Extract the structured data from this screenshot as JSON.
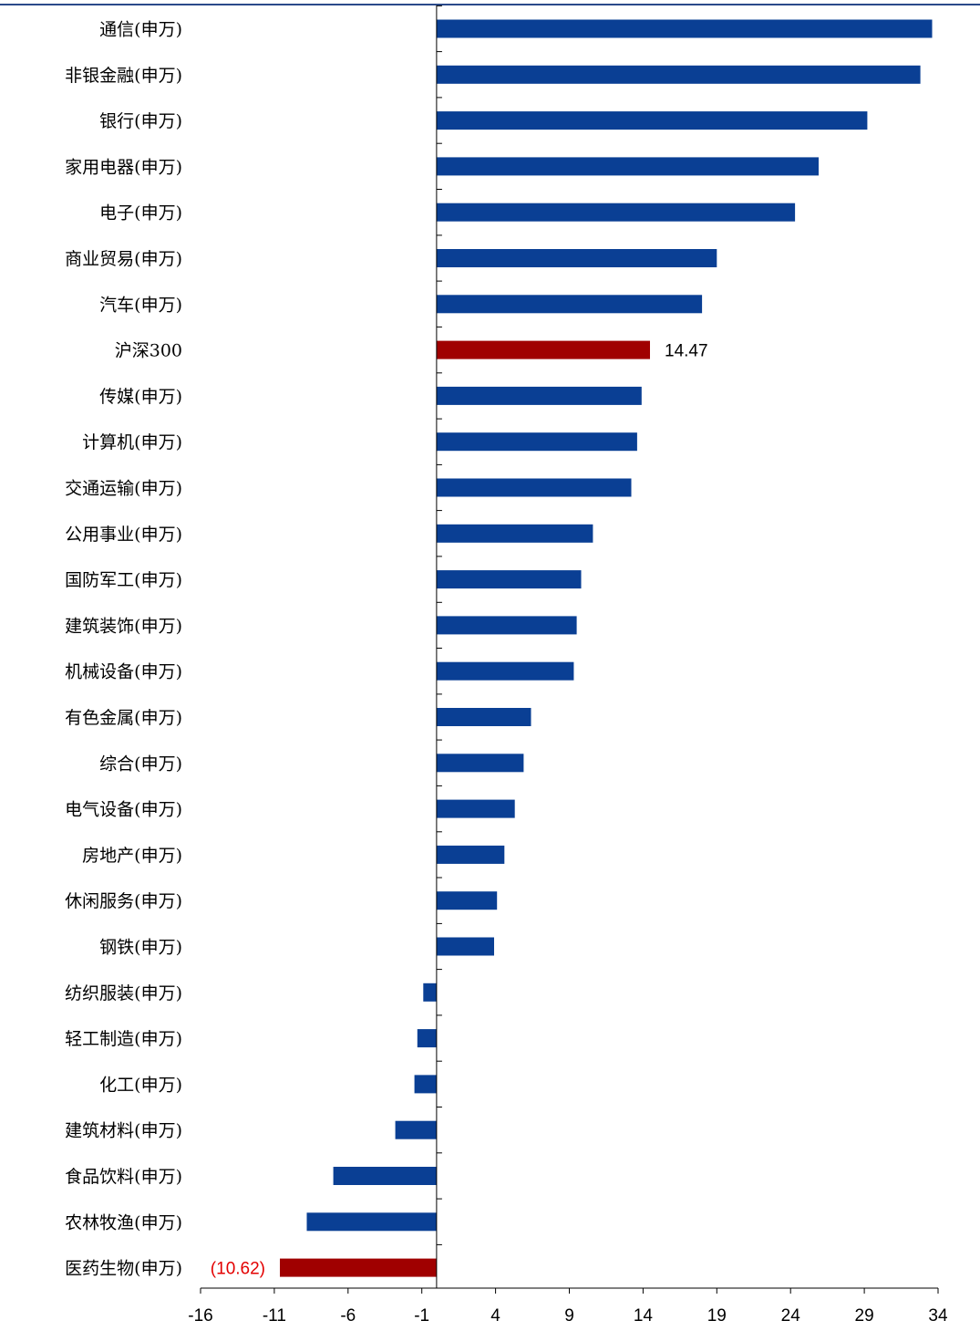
{
  "chart_data": {
    "type": "bar",
    "orientation": "horizontal",
    "title": "",
    "xlabel": "",
    "ylabel": "",
    "xlim": [
      -16,
      34
    ],
    "ticks": [
      -16,
      -11,
      -6,
      -1,
      4,
      9,
      14,
      19,
      24,
      29,
      34
    ],
    "grid": false,
    "legend": "none",
    "colors": {
      "default_bar": "#0a3f94",
      "highlight_bar": "#a00000",
      "highlight_label": "#e30000",
      "top_rule": "#2b4a8a"
    },
    "categories": [
      "通信(申万)",
      "非银金融(申万)",
      "银行(申万)",
      "家用电器(申万)",
      "电子(申万)",
      "商业贸易(申万)",
      "汽车(申万)",
      "沪深300",
      "传媒(申万)",
      "计算机(申万)",
      "交通运输(申万)",
      "公用事业(申万)",
      "国防军工(申万)",
      "建筑装饰(申万)",
      "机械设备(申万)",
      "有色金属(申万)",
      "综合(申万)",
      "电气设备(申万)",
      "房地产(申万)",
      "休闲服务(申万)",
      "钢铁(申万)",
      "纺织服装(申万)",
      "轻工制造(申万)",
      "化工(申万)",
      "建筑材料(申万)",
      "食品饮料(申万)",
      "农林牧渔(申万)",
      "医药生物(申万)"
    ],
    "values": [
      33.6,
      32.8,
      29.2,
      25.9,
      24.3,
      19.0,
      18.0,
      14.47,
      13.9,
      13.6,
      13.2,
      10.6,
      9.8,
      9.5,
      9.3,
      6.4,
      5.9,
      5.3,
      4.6,
      4.1,
      3.9,
      -0.9,
      -1.3,
      -1.5,
      -2.8,
      -7.0,
      -8.8,
      -10.62
    ],
    "highlight": [
      7,
      27
    ],
    "data_labels": [
      {
        "index": 7,
        "text": "14.47"
      },
      {
        "index": 27,
        "text": "(10.62)"
      }
    ]
  }
}
